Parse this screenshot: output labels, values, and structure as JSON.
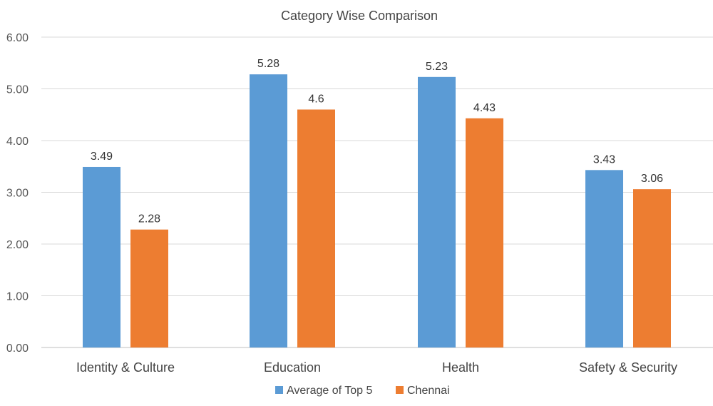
{
  "chart_data": {
    "type": "bar",
    "title": "Category Wise Comparison",
    "categories": [
      "Identity & Culture",
      "Education",
      "Health",
      "Safety & Security"
    ],
    "series": [
      {
        "name": "Average of Top 5",
        "color": "#5B9BD5",
        "values": [
          3.49,
          5.28,
          5.23,
          3.43
        ],
        "labels": [
          "3.49",
          "5.28",
          "5.23",
          "3.43"
        ]
      },
      {
        "name": "Chennai",
        "color": "#ED7D31",
        "values": [
          2.28,
          4.6,
          4.43,
          3.06
        ],
        "labels": [
          "2.28",
          "4.6",
          "4.43",
          "3.06"
        ]
      }
    ],
    "ylim": [
      0,
      6
    ],
    "yticks": [
      "0.00",
      "1.00",
      "2.00",
      "3.00",
      "4.00",
      "5.00",
      "6.00"
    ],
    "grid": true,
    "legend_position": "bottom",
    "xlabel": "",
    "ylabel": ""
  }
}
